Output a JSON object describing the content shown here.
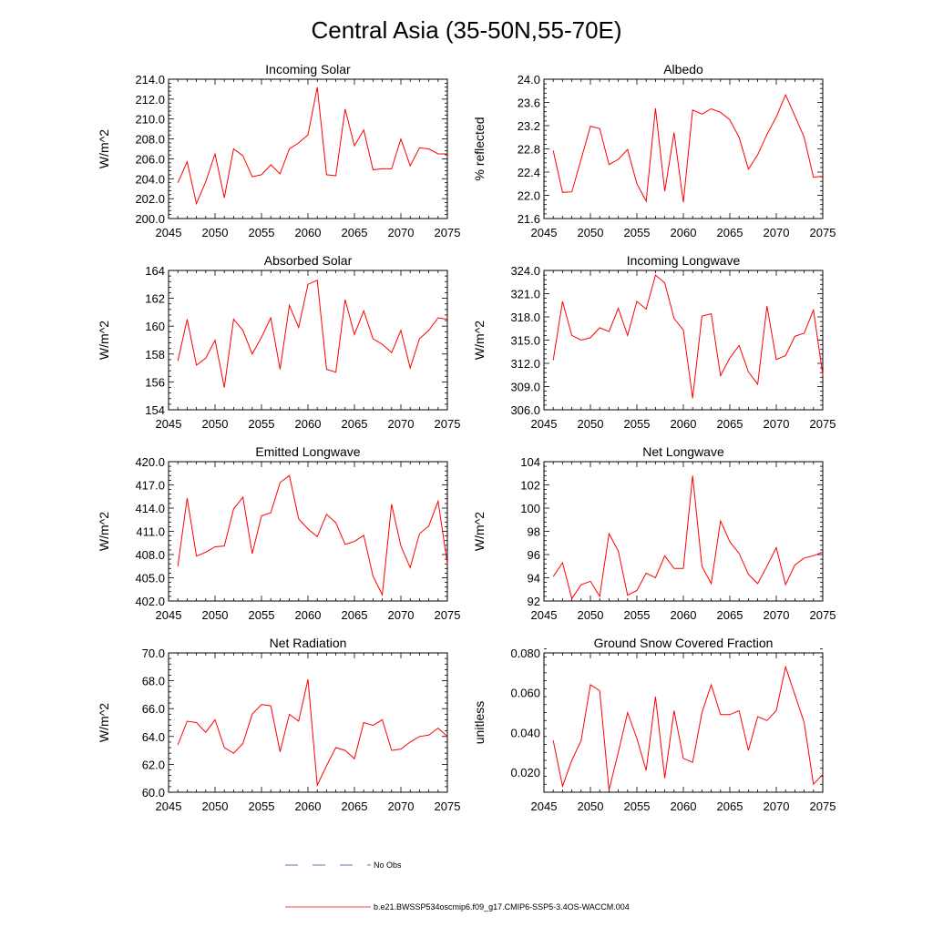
{
  "figure_title": "Central Asia (35-50N,55-70E)",
  "legend": {
    "obs_label": "No Obs",
    "obs_color": "#3344aa",
    "model_label": "b.e21.BWSSP534oscmip6.f09_g17.CMIP6-SSP5-3.4OS-WACCM.004",
    "model_color": "#ff0000"
  },
  "chart_data": [
    {
      "type": "line",
      "title": "Incoming Solar",
      "xlabel": "",
      "ylabel": "W/m^2",
      "xlim": [
        2045,
        2075
      ],
      "ylim": [
        200,
        214
      ],
      "yticks": [
        "200.0",
        "202.0",
        "204.0",
        "206.0",
        "208.0",
        "210.0",
        "212.0",
        "214.0"
      ],
      "xticks": [
        "2045",
        "2050",
        "2055",
        "2060",
        "2065",
        "2070",
        "2075"
      ],
      "series": [
        {
          "name": "b.e21.BWSSP534oscmip6.f09_g17.CMIP6-SSP5-3.4OS-WACCM.004",
          "x": [
            2046,
            2047,
            2048,
            2049,
            2050,
            2051,
            2052,
            2053,
            2054,
            2055,
            2056,
            2057,
            2058,
            2059,
            2060,
            2061,
            2062,
            2063,
            2064,
            2065,
            2066,
            2067,
            2068,
            2069,
            2070,
            2071,
            2072,
            2073,
            2074,
            2075
          ],
          "values": [
            203.6,
            205.7,
            201.5,
            203.7,
            206.5,
            202.1,
            207.0,
            206.3,
            204.2,
            204.4,
            205.4,
            204.5,
            207.0,
            207.6,
            208.4,
            213.2,
            204.4,
            204.3,
            211.0,
            207.3,
            208.9,
            204.9,
            205.0,
            205.0,
            208.0,
            205.3,
            207.1,
            207.0,
            206.5,
            206.5
          ]
        }
      ]
    },
    {
      "type": "line",
      "title": "Albedo",
      "xlabel": "",
      "ylabel": "% reflected",
      "xlim": [
        2045,
        2075
      ],
      "ylim": [
        21.6,
        24.0
      ],
      "yticks": [
        "21.6",
        "22.0",
        "22.4",
        "22.8",
        "23.2",
        "23.6",
        "24.0"
      ],
      "xticks": [
        "2045",
        "2050",
        "2055",
        "2060",
        "2065",
        "2070",
        "2075"
      ],
      "series": [
        {
          "name": "b.e21.BWSSP534oscmip6.f09_g17.CMIP6-SSP5-3.4OS-WACCM.004",
          "x": [
            2046,
            2047,
            2048,
            2049,
            2050,
            2051,
            2052,
            2053,
            2054,
            2055,
            2056,
            2057,
            2058,
            2059,
            2060,
            2061,
            2062,
            2063,
            2064,
            2065,
            2066,
            2067,
            2068,
            2069,
            2070,
            2071,
            2072,
            2073,
            2074,
            2075
          ],
          "values": [
            22.77,
            22.05,
            22.06,
            22.62,
            23.19,
            23.15,
            22.53,
            22.62,
            22.79,
            22.2,
            21.9,
            23.5,
            22.07,
            23.08,
            21.88,
            23.47,
            23.4,
            23.49,
            23.43,
            23.3,
            23.0,
            22.45,
            22.7,
            23.05,
            23.35,
            23.73,
            23.37,
            23.0,
            22.31,
            22.33
          ]
        }
      ]
    },
    {
      "type": "line",
      "title": "Absorbed Solar",
      "xlabel": "",
      "ylabel": "W/m^2",
      "xlim": [
        2045,
        2075
      ],
      "ylim": [
        154,
        164
      ],
      "yticks": [
        "154",
        "156",
        "158",
        "160",
        "162",
        "164"
      ],
      "xticks": [
        "2045",
        "2050",
        "2055",
        "2060",
        "2065",
        "2070",
        "2075"
      ],
      "series": [
        {
          "name": "b.e21.BWSSP534oscmip6.f09_g17.CMIP6-SSP5-3.4OS-WACCM.004",
          "x": [
            2046,
            2047,
            2048,
            2049,
            2050,
            2051,
            2052,
            2053,
            2054,
            2055,
            2056,
            2057,
            2058,
            2059,
            2060,
            2061,
            2062,
            2063,
            2064,
            2065,
            2066,
            2067,
            2068,
            2069,
            2070,
            2071,
            2072,
            2073,
            2074,
            2075
          ],
          "values": [
            157.5,
            160.5,
            157.2,
            157.7,
            159.0,
            155.6,
            160.5,
            159.7,
            158.0,
            159.2,
            160.6,
            156.9,
            161.5,
            159.9,
            163.0,
            163.3,
            156.9,
            156.7,
            161.9,
            159.4,
            161.1,
            159.1,
            158.7,
            158.1,
            159.7,
            157.0,
            159.1,
            159.7,
            160.6,
            160.5
          ]
        }
      ]
    },
    {
      "type": "line",
      "title": "Incoming Longwave",
      "xlabel": "",
      "ylabel": "W/m^2",
      "xlim": [
        2045,
        2075
      ],
      "ylim": [
        306,
        324
      ],
      "yticks": [
        "306.0",
        "309.0",
        "312.0",
        "315.0",
        "318.0",
        "321.0",
        "324.0"
      ],
      "xticks": [
        "2045",
        "2050",
        "2055",
        "2060",
        "2065",
        "2070",
        "2075"
      ],
      "series": [
        {
          "name": "b.e21.BWSSP534oscmip6.f09_g17.CMIP6-SSP5-3.4OS-WACCM.004",
          "x": [
            2046,
            2047,
            2048,
            2049,
            2050,
            2051,
            2052,
            2053,
            2054,
            2055,
            2056,
            2057,
            2058,
            2059,
            2060,
            2061,
            2062,
            2063,
            2064,
            2065,
            2066,
            2067,
            2068,
            2069,
            2070,
            2071,
            2072,
            2073,
            2074,
            2075
          ],
          "values": [
            312.4,
            320.0,
            315.6,
            315.0,
            315.3,
            316.6,
            316.1,
            319.1,
            315.6,
            320.0,
            319.0,
            323.4,
            322.4,
            317.8,
            316.3,
            307.5,
            318.1,
            318.4,
            310.4,
            312.7,
            314.3,
            310.9,
            309.3,
            319.4,
            312.5,
            313.0,
            315.5,
            315.9,
            318.9,
            310.5
          ]
        }
      ]
    },
    {
      "type": "line",
      "title": "Emitted Longwave",
      "xlabel": "",
      "ylabel": "W/m^2",
      "xlim": [
        2045,
        2075
      ],
      "ylim": [
        402,
        420
      ],
      "yticks": [
        "402.0",
        "405.0",
        "408.0",
        "411.0",
        "414.0",
        "417.0",
        "420.0"
      ],
      "xticks": [
        "2045",
        "2050",
        "2055",
        "2060",
        "2065",
        "2070",
        "2075"
      ],
      "series": [
        {
          "name": "b.e21.BWSSP534oscmip6.f09_g17.CMIP6-SSP5-3.4OS-WACCM.004",
          "x": [
            2046,
            2047,
            2048,
            2049,
            2050,
            2051,
            2052,
            2053,
            2054,
            2055,
            2056,
            2057,
            2058,
            2059,
            2060,
            2061,
            2062,
            2063,
            2064,
            2065,
            2066,
            2067,
            2068,
            2069,
            2070,
            2071,
            2072,
            2073,
            2074,
            2075
          ],
          "values": [
            406.5,
            415.3,
            407.8,
            408.3,
            409.0,
            409.1,
            413.9,
            415.4,
            408.1,
            413.0,
            413.4,
            417.3,
            418.2,
            412.6,
            411.3,
            410.3,
            413.2,
            412.1,
            409.3,
            409.7,
            410.5,
            405.2,
            402.8,
            414.5,
            409.1,
            406.3,
            410.7,
            411.7,
            414.9,
            406.8
          ]
        }
      ]
    },
    {
      "type": "line",
      "title": "Net Longwave",
      "xlabel": "",
      "ylabel": "W/m^2",
      "xlim": [
        2045,
        2075
      ],
      "ylim": [
        92,
        104
      ],
      "yticks": [
        "92",
        "94",
        "96",
        "98",
        "100",
        "102",
        "104"
      ],
      "xticks": [
        "2045",
        "2050",
        "2055",
        "2060",
        "2065",
        "2070",
        "2075"
      ],
      "series": [
        {
          "name": "b.e21.BWSSP534oscmip6.f09_g17.CMIP6-SSP5-3.4OS-WACCM.004",
          "x": [
            2046,
            2047,
            2048,
            2049,
            2050,
            2051,
            2052,
            2053,
            2054,
            2055,
            2056,
            2057,
            2058,
            2059,
            2060,
            2061,
            2062,
            2063,
            2064,
            2065,
            2066,
            2067,
            2068,
            2069,
            2070,
            2071,
            2072,
            2073,
            2074,
            2075
          ],
          "values": [
            94.1,
            95.3,
            92.2,
            93.4,
            93.7,
            92.4,
            97.8,
            96.3,
            92.5,
            92.9,
            94.4,
            94.0,
            95.9,
            94.8,
            94.8,
            102.8,
            95.0,
            93.5,
            98.9,
            97.1,
            96.1,
            94.3,
            93.5,
            95.0,
            96.6,
            93.4,
            95.1,
            95.7,
            95.9,
            96.2
          ]
        }
      ]
    },
    {
      "type": "line",
      "title": "Net Radiation",
      "xlabel": "",
      "ylabel": "W/m^2",
      "xlim": [
        2045,
        2075
      ],
      "ylim": [
        60,
        70
      ],
      "yticks": [
        "60.0",
        "62.0",
        "64.0",
        "66.0",
        "68.0",
        "70.0"
      ],
      "xticks": [
        "2045",
        "2050",
        "2055",
        "2060",
        "2065",
        "2070",
        "2075"
      ],
      "series": [
        {
          "name": "b.e21.BWSSP534oscmip6.f09_g17.CMIP6-SSP5-3.4OS-WACCM.004",
          "x": [
            2046,
            2047,
            2048,
            2049,
            2050,
            2051,
            2052,
            2053,
            2054,
            2055,
            2056,
            2057,
            2058,
            2059,
            2060,
            2061,
            2062,
            2063,
            2064,
            2065,
            2066,
            2067,
            2068,
            2069,
            2070,
            2071,
            2072,
            2073,
            2074,
            2075
          ],
          "values": [
            63.4,
            65.1,
            65.0,
            64.3,
            65.2,
            63.2,
            62.8,
            63.5,
            65.6,
            66.3,
            66.2,
            62.9,
            65.6,
            65.1,
            68.1,
            60.5,
            61.9,
            63.2,
            63.0,
            62.4,
            65.0,
            64.8,
            65.2,
            63.0,
            63.1,
            63.6,
            64.0,
            64.1,
            64.6,
            64.0
          ]
        }
      ]
    },
    {
      "type": "line",
      "title": "Ground Snow Covered Fraction",
      "xlabel": "",
      "ylabel": "unitless",
      "xlim": [
        2045,
        2075
      ],
      "ylim": [
        0.01,
        0.08
      ],
      "yticks": [
        "0.020",
        "0.040",
        "0.060",
        "0.080"
      ],
      "xticks": [
        "2045",
        "2050",
        "2055",
        "2060",
        "2065",
        "2070",
        "2075"
      ],
      "series": [
        {
          "name": "b.e21.BWSSP534oscmip6.f09_g17.CMIP6-SSP5-3.4OS-WACCM.004",
          "x": [
            2046,
            2047,
            2048,
            2049,
            2050,
            2051,
            2052,
            2053,
            2054,
            2055,
            2056,
            2057,
            2058,
            2059,
            2060,
            2061,
            2062,
            2063,
            2064,
            2065,
            2066,
            2067,
            2068,
            2069,
            2070,
            2071,
            2072,
            2073,
            2074,
            2075
          ],
          "values": [
            0.036,
            0.013,
            0.026,
            0.036,
            0.064,
            0.061,
            0.011,
            0.03,
            0.05,
            0.037,
            0.021,
            0.058,
            0.017,
            0.051,
            0.027,
            0.025,
            0.05,
            0.064,
            0.049,
            0.049,
            0.051,
            0.031,
            0.048,
            0.046,
            0.051,
            0.073,
            0.059,
            0.045,
            0.014,
            0.019
          ]
        }
      ]
    }
  ]
}
